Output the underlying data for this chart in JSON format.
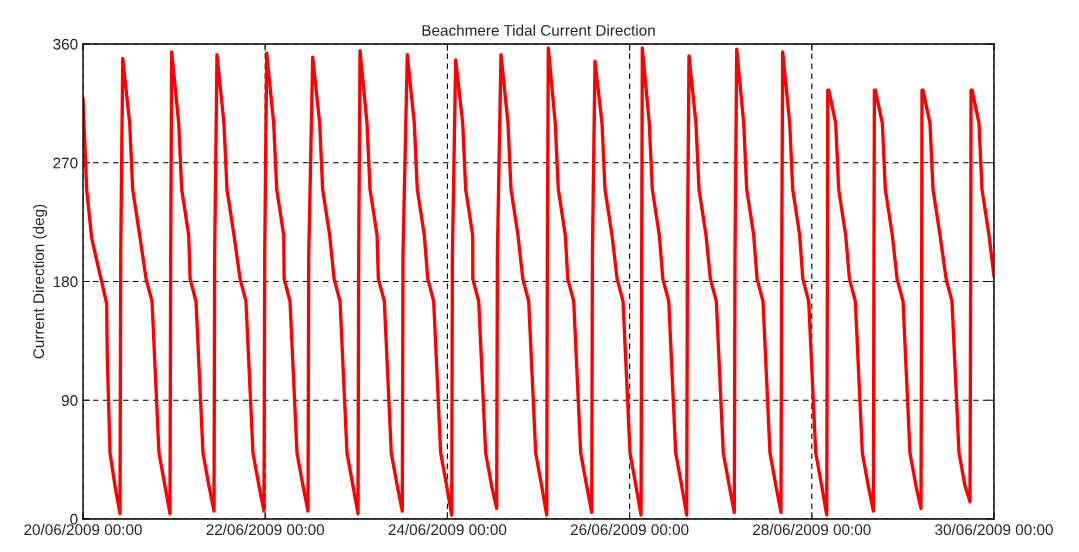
{
  "chart_data": {
    "type": "line",
    "title": "Beachmere Tidal Current Direction",
    "ylabel": "Current Direction (deg)",
    "xlim": [
      "2009-06-20T00:00",
      "2009-06-30T00:00"
    ],
    "ylim": [
      0,
      360
    ],
    "xticks": [
      {
        "value": "2009-06-20T00:00",
        "label": "20/06/2009 00:00"
      },
      {
        "value": "2009-06-22T00:00",
        "label": "22/06/2009 00:00"
      },
      {
        "value": "2009-06-24T00:00",
        "label": "24/06/2009 00:00"
      },
      {
        "value": "2009-06-26T00:00",
        "label": "26/06/2009 00:00"
      },
      {
        "value": "2009-06-28T00:00",
        "label": "28/06/2009 00:00"
      },
      {
        "value": "2009-06-30T00:00",
        "label": "30/06/2009 00:00"
      }
    ],
    "yticks": [
      0,
      90,
      180,
      270,
      360
    ],
    "grid": true,
    "line_style": "solid",
    "series": [
      {
        "color": "#ff0000",
        "x": [
          "2009-06-20T00:00",
          "2009-06-20T00:58",
          "2009-06-20T02:17",
          "2009-06-20T03:37",
          "2009-06-20T04:55",
          "2009-06-20T06:14",
          "2009-06-20T06:24",
          "2009-06-20T07:07",
          "2009-06-20T08:26",
          "2009-06-20T09:45",
          "2009-06-20T09:56",
          "2009-06-20T10:28",
          "2009-06-20T12:18",
          "2009-06-20T13:05",
          "2009-06-20T14:56",
          "2009-06-20T16:37",
          "2009-06-20T18:11",
          "2009-06-20T20:01",
          "2009-06-20T21:36",
          "2009-06-20T22:55",
          "2009-06-20T23:06",
          "2009-06-20T23:22",
          "2009-06-21T01:13",
          "2009-06-21T02:00",
          "2009-06-21T03:51",
          "2009-06-21T04:13",
          "2009-06-21T05:46",
          "2009-06-21T07:37",
          "2009-06-21T09:11",
          "2009-06-21T10:31",
          "2009-06-21T10:41",
          "2009-06-21T11:18",
          "2009-06-21T13:08",
          "2009-06-21T13:56",
          "2009-06-21T15:47",
          "2009-06-21T17:23",
          "2009-06-21T18:56",
          "2009-06-21T20:47",
          "2009-06-21T22:22",
          "2009-06-21T23:41",
          "2009-06-21T23:52",
          "2009-06-22T00:24",
          "2009-06-22T02:14",
          "2009-06-22T03:02",
          "2009-06-22T04:53",
          "2009-06-22T04:59",
          "2009-06-22T06:32",
          "2009-06-22T08:23",
          "2009-06-22T09:58",
          "2009-06-22T11:17",
          "2009-06-22T11:28",
          "2009-06-22T12:31",
          "2009-06-22T14:21",
          "2009-06-22T15:08",
          "2009-06-22T16:59",
          "2009-06-22T18:09",
          "2009-06-22T19:43",
          "2009-06-22T21:33",
          "2009-06-22T23:08",
          "2009-06-23T00:27",
          "2009-06-23T00:38",
          "2009-06-23T00:59",
          "2009-06-23T02:49",
          "2009-06-23T03:37",
          "2009-06-23T05:28",
          "2009-06-23T05:49",
          "2009-06-23T07:23",
          "2009-06-23T09:13",
          "2009-06-23T10:48",
          "2009-06-23T12:07",
          "2009-06-23T12:18",
          "2009-06-23T13:26",
          "2009-06-23T15:17",
          "2009-06-23T16:04",
          "2009-06-23T17:55",
          "2009-06-23T18:50",
          "2009-06-23T20:23",
          "2009-06-23T22:14",
          "2009-06-23T23:49",
          "2009-06-24T01:08",
          "2009-06-24T01:19",
          "2009-06-24T02:11",
          "2009-06-24T04:02",
          "2009-06-24T04:49",
          "2009-06-24T06:40",
          "2009-06-24T06:41",
          "2009-06-24T08:15",
          "2009-06-24T10:05",
          "2009-06-24T11:40",
          "2009-06-24T12:59",
          "2009-06-24T13:10",
          "2009-06-24T14:07",
          "2009-06-24T15:58",
          "2009-06-24T16:45",
          "2009-06-24T18:36",
          "2009-06-24T19:52",
          "2009-06-24T21:25",
          "2009-06-24T23:16",
          "2009-06-25T00:50",
          "2009-06-25T02:10",
          "2009-06-25T02:20",
          "2009-06-25T02:35",
          "2009-06-25T04:25",
          "2009-06-25T05:13",
          "2009-06-25T07:04",
          "2009-06-25T07:43",
          "2009-06-25T09:17",
          "2009-06-25T11:07",
          "2009-06-25T12:42",
          "2009-06-25T14:01",
          "2009-06-25T14:12",
          "2009-06-25T14:53",
          "2009-06-25T16:44",
          "2009-06-25T17:31",
          "2009-06-25T19:22",
          "2009-06-25T20:43",
          "2009-06-25T22:16",
          "2009-06-26T00:07",
          "2009-06-26T01:41",
          "2009-06-26T03:01",
          "2009-06-26T03:11",
          "2009-06-26T03:21",
          "2009-06-26T05:11",
          "2009-06-26T05:59",
          "2009-06-26T07:50",
          "2009-06-26T08:45",
          "2009-06-26T10:19",
          "2009-06-26T12:09",
          "2009-06-26T13:44",
          "2009-06-26T15:03",
          "2009-06-26T15:14",
          "2009-06-26T15:39",
          "2009-06-26T17:29",
          "2009-06-26T18:17",
          "2009-06-26T20:08",
          "2009-06-26T21:17",
          "2009-06-26T22:51",
          "2009-06-27T00:41",
          "2009-06-27T02:16",
          "2009-06-27T03:35",
          "2009-06-27T03:46",
          "2009-06-27T04:13",
          "2009-06-27T06:04",
          "2009-06-27T06:51",
          "2009-06-27T08:42",
          "2009-06-27T09:35",
          "2009-06-27T11:09",
          "2009-06-27T12:59",
          "2009-06-27T14:34",
          "2009-06-27T15:53",
          "2009-06-27T16:04",
          "2009-06-27T16:20",
          "2009-06-27T18:11",
          "2009-06-27T18:58",
          "2009-06-27T20:49",
          "2009-06-27T21:38",
          "2009-06-27T23:11",
          "2009-06-28T01:02",
          "2009-06-28T02:37",
          "2009-06-28T03:56",
          "2009-06-28T04:07",
          "2009-06-28T04:12",
          "2009-06-28T04:20",
          "2009-06-28T04:28",
          "2009-06-28T06:18",
          "2009-06-28T07:05",
          "2009-06-28T08:56",
          "2009-06-28T09:55",
          "2009-06-28T11:28",
          "2009-06-28T13:19",
          "2009-06-28T14:53",
          "2009-06-28T16:13",
          "2009-06-28T16:23",
          "2009-06-28T16:29",
          "2009-06-28T16:37",
          "2009-06-28T16:44",
          "2009-06-28T18:35",
          "2009-06-28T19:22",
          "2009-06-28T21:13",
          "2009-06-28T22:28",
          "2009-06-29T00:02",
          "2009-06-29T01:52",
          "2009-06-29T03:27",
          "2009-06-29T04:46",
          "2009-06-29T04:57",
          "2009-06-29T05:02",
          "2009-06-29T05:10",
          "2009-06-29T05:18",
          "2009-06-29T07:08",
          "2009-06-29T07:56",
          "2009-06-29T09:47",
          "2009-06-29T11:23",
          "2009-06-29T12:56",
          "2009-06-29T14:47",
          "2009-06-29T16:22",
          "2009-06-29T17:41",
          "2009-06-29T17:52",
          "2009-06-29T17:57",
          "2009-06-29T18:05",
          "2009-06-29T18:13",
          "2009-06-29T20:03",
          "2009-06-29T20:50",
          "2009-06-29T22:41",
          "2009-06-30T00:00"
        ],
        "values": [
          319,
          250,
          213,
          196,
          180,
          163,
          123,
          50,
          25,
          4,
          200,
          349,
          300,
          250,
          215,
          182,
          165,
          50,
          25,
          4,
          200,
          354,
          300,
          250,
          215,
          182,
          165,
          50,
          25,
          6,
          200,
          352,
          300,
          250,
          215,
          182,
          165,
          50,
          25,
          6,
          200,
          353,
          300,
          250,
          215,
          182,
          165,
          50,
          25,
          6,
          200,
          350,
          300,
          250,
          215,
          182,
          165,
          50,
          25,
          4,
          200,
          355,
          300,
          250,
          215,
          182,
          165,
          50,
          25,
          6,
          200,
          352,
          300,
          250,
          215,
          182,
          165,
          50,
          25,
          3,
          200,
          348,
          300,
          250,
          215,
          182,
          165,
          50,
          25,
          8,
          200,
          352,
          300,
          250,
          215,
          182,
          165,
          50,
          25,
          3,
          200,
          357,
          300,
          250,
          215,
          182,
          165,
          50,
          25,
          5,
          200,
          347,
          300,
          250,
          215,
          182,
          165,
          50,
          25,
          3,
          200,
          357,
          300,
          250,
          215,
          182,
          165,
          50,
          25,
          3,
          200,
          351,
          300,
          250,
          215,
          182,
          165,
          50,
          25,
          5,
          200,
          356,
          300,
          250,
          215,
          182,
          165,
          50,
          25,
          5,
          200,
          354,
          300,
          250,
          215,
          182,
          165,
          50,
          25,
          3,
          200,
          325,
          null,
          325,
          300,
          250,
          215,
          182,
          165,
          50,
          25,
          6,
          200,
          325,
          null,
          325,
          300,
          250,
          215,
          182,
          165,
          50,
          25,
          8,
          200,
          325,
          null,
          325,
          300,
          250,
          215,
          182,
          165,
          50,
          25,
          13,
          200,
          325,
          null,
          325,
          300,
          250,
          215,
          184
        ]
      }
    ]
  }
}
